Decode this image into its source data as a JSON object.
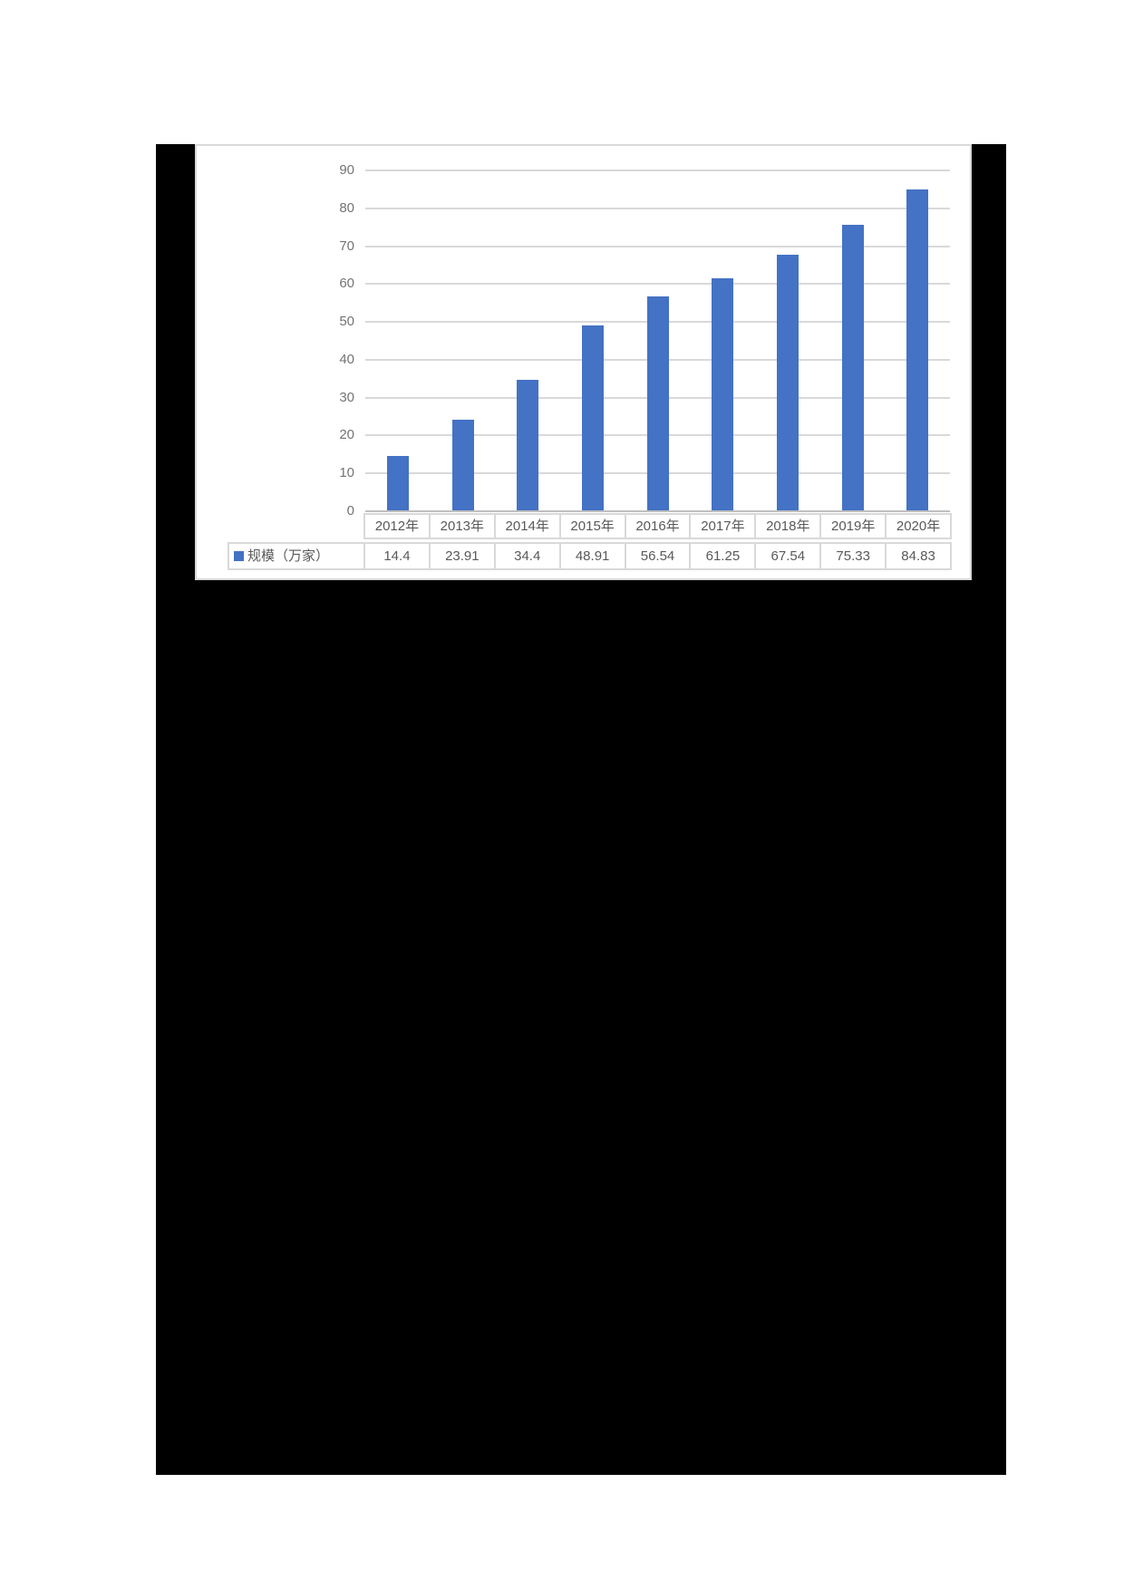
{
  "chart_data": {
    "type": "bar",
    "title": "",
    "categories": [
      "2012年",
      "2013年",
      "2014年",
      "2015年",
      "2016年",
      "2017年",
      "2018年",
      "2019年",
      "2020年"
    ],
    "series": [
      {
        "name": "规模（万家）",
        "values": [
          14.4,
          23.91,
          34.4,
          48.91,
          56.54,
          61.25,
          67.54,
          75.33,
          84.83
        ]
      }
    ],
    "ylim": [
      0,
      90
    ],
    "ytick_step": 10,
    "yticks": [
      "0",
      "10",
      "20",
      "30",
      "40",
      "50",
      "60",
      "70",
      "80",
      "90"
    ],
    "grid": true,
    "legend_position": "data-table-left",
    "data_table_shown": true,
    "bar_color": "#4472C4"
  },
  "colors": {
    "page": "#ffffff",
    "backdrop": "#000000",
    "panel_border": "#d9d9d9",
    "bar": "#4472C4",
    "gridline": "#d9d9d9",
    "axis_line": "#bfbfbf",
    "axis_text": "#737373",
    "table_text": "#595959",
    "table_border": "#d9d9d9"
  }
}
